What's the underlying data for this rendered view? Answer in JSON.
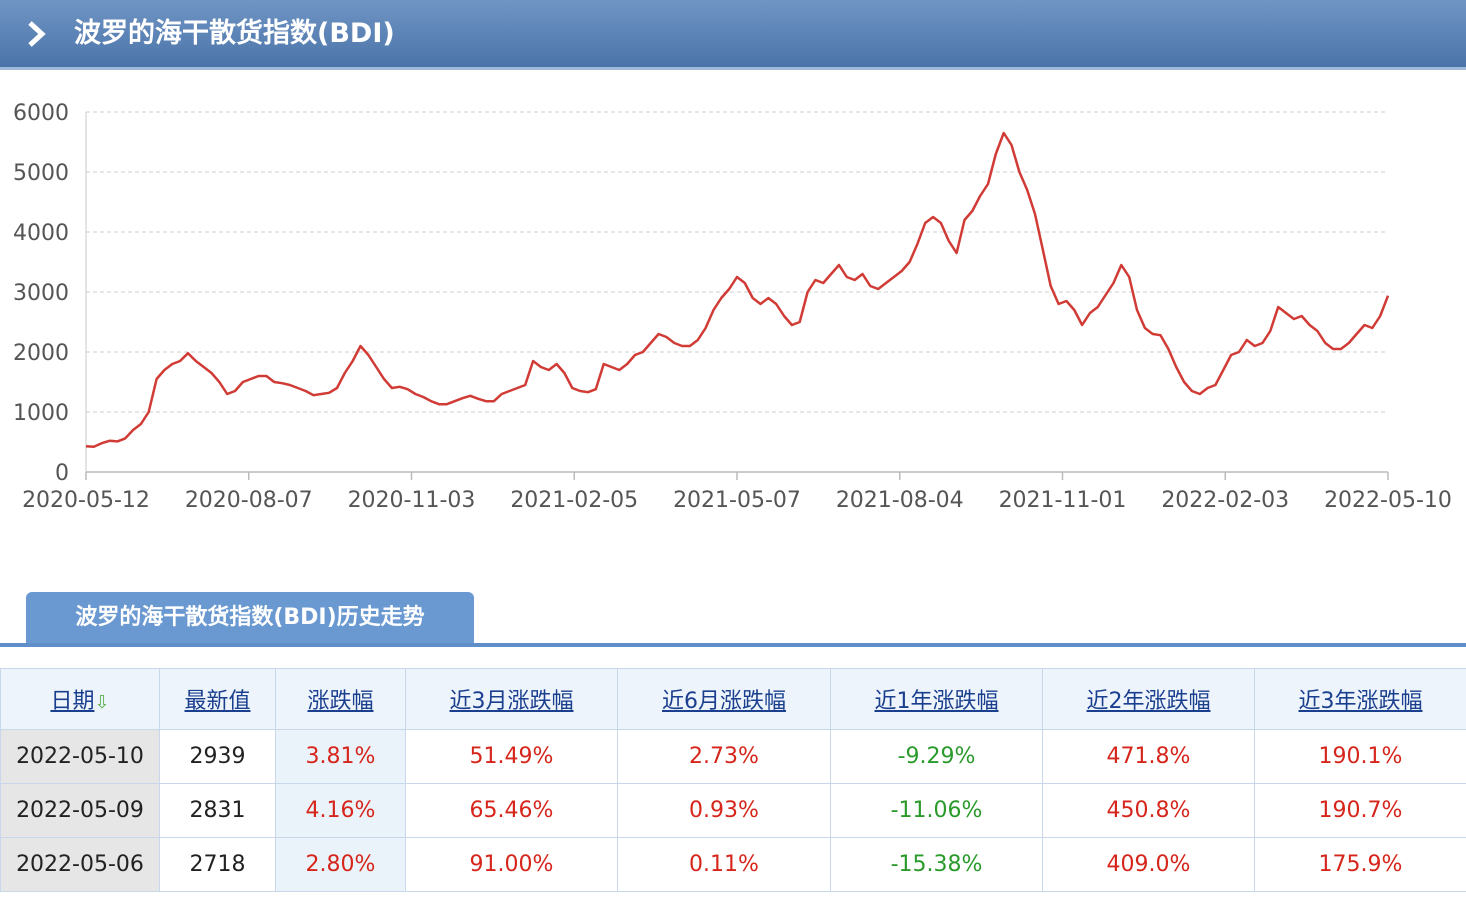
{
  "header": {
    "title": "波罗的海干散货指数(BDI)"
  },
  "chart_data": {
    "type": "line",
    "title": "",
    "xlabel": "",
    "ylabel": "",
    "ylim": [
      0,
      6000
    ],
    "yticks": [
      0,
      1000,
      2000,
      3000,
      4000,
      5000,
      6000
    ],
    "xticks": [
      "2020-05-12",
      "2020-08-07",
      "2020-11-03",
      "2021-02-05",
      "2021-05-07",
      "2021-08-04",
      "2021-11-01",
      "2022-02-03",
      "2022-05-10"
    ],
    "grid": true,
    "line_color": "#d13b35",
    "series": [
      {
        "values": [
          430,
          420,
          480,
          520,
          510,
          560,
          700,
          800,
          1000,
          1550,
          1700,
          1800,
          1850,
          1980,
          1850,
          1750,
          1650,
          1500,
          1300,
          1350,
          1500,
          1550,
          1600,
          1600,
          1500,
          1480,
          1450,
          1400,
          1350,
          1280,
          1300,
          1320,
          1400,
          1650,
          1850,
          2100,
          1950,
          1750,
          1550,
          1400,
          1420,
          1380,
          1300,
          1250,
          1180,
          1130,
          1130,
          1180,
          1230,
          1270,
          1220,
          1180,
          1180,
          1300,
          1350,
          1400,
          1450,
          1850,
          1750,
          1700,
          1800,
          1650,
          1400,
          1350,
          1330,
          1380,
          1800,
          1750,
          1700,
          1800,
          1950,
          2000,
          2150,
          2300,
          2250,
          2150,
          2100,
          2100,
          2200,
          2400,
          2700,
          2900,
          3050,
          3250,
          3150,
          2900,
          2800,
          2900,
          2800,
          2600,
          2450,
          2500,
          3000,
          3200,
          3150,
          3300,
          3450,
          3250,
          3200,
          3300,
          3100,
          3050,
          3150,
          3250,
          3350,
          3500,
          3800,
          4150,
          4250,
          4150,
          3850,
          3650,
          4200,
          4350,
          4600,
          4800,
          5300,
          5650,
          5450,
          5000,
          4700,
          4300,
          3700,
          3100,
          2800,
          2850,
          2700,
          2450,
          2650,
          2750,
          2950,
          3150,
          3450,
          3250,
          2700,
          2400,
          2300,
          2280,
          2050,
          1750,
          1500,
          1350,
          1300,
          1400,
          1450,
          1700,
          1950,
          2000,
          2200,
          2100,
          2150,
          2350,
          2750,
          2650,
          2550,
          2600,
          2450,
          2350,
          2150,
          2050,
          2050,
          2150,
          2300,
          2450,
          2400,
          2600,
          2939
        ]
      }
    ]
  },
  "tab": {
    "label": "波罗的海干散货指数(BDI)历史走势"
  },
  "table": {
    "headers": [
      "日期",
      "最新值",
      "涨跌幅",
      "近3月涨跌幅",
      "近6月涨跌幅",
      "近1年涨跌幅",
      "近2年涨跌幅",
      "近3年涨跌幅"
    ],
    "sort_arrow": "⇩",
    "rows": [
      {
        "date": "2022-05-10",
        "value": "2939",
        "change": "3.81%",
        "m3": "51.49%",
        "m6": "2.73%",
        "y1": "-9.29%",
        "y2": "471.8%",
        "y3": "190.1%"
      },
      {
        "date": "2022-05-09",
        "value": "2831",
        "change": "4.16%",
        "m3": "65.46%",
        "m6": "0.93%",
        "y1": "-11.06%",
        "y2": "450.8%",
        "y3": "190.7%"
      },
      {
        "date": "2022-05-06",
        "value": "2718",
        "change": "2.80%",
        "m3": "91.00%",
        "m6": "0.11%",
        "y1": "-15.38%",
        "y2": "409.0%",
        "y3": "175.9%"
      }
    ]
  }
}
